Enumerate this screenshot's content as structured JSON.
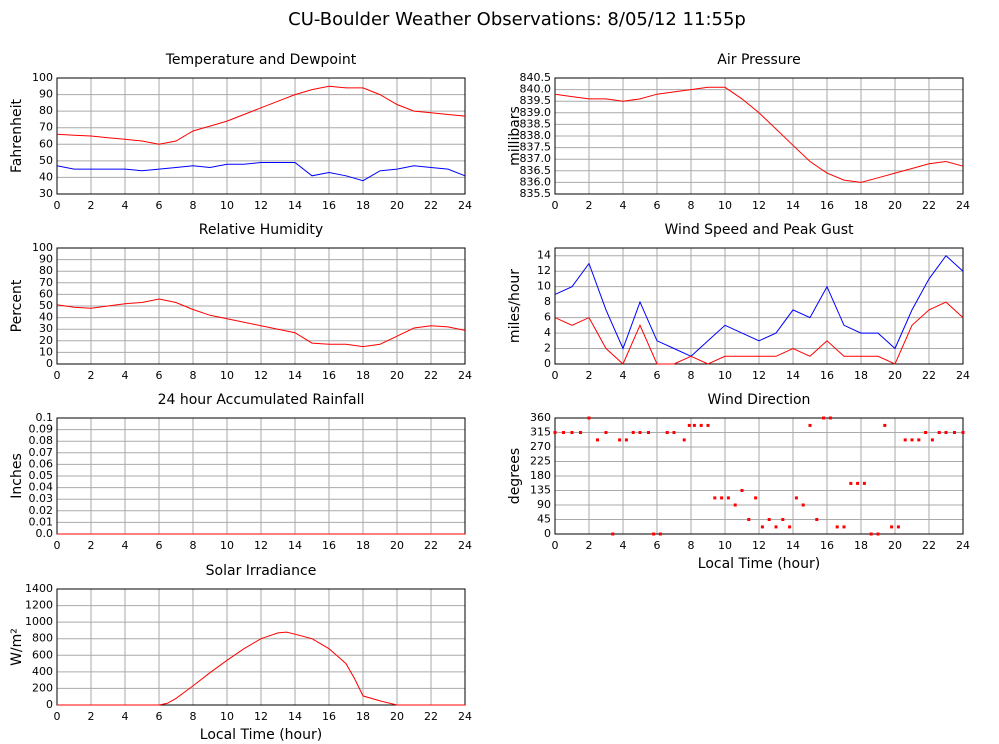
{
  "title": "CU-Boulder Weather Observations: 8/05/12 11:55p",
  "chart_data": [
    {
      "type": "line",
      "title": "Temperature and Dewpoint",
      "y_label": "Fahrenheit",
      "x": [
        0,
        1,
        2,
        3,
        4,
        5,
        6,
        7,
        8,
        9,
        10,
        11,
        12,
        13,
        14,
        15,
        16,
        17,
        18,
        19,
        20,
        21,
        22,
        23,
        24
      ],
      "series": [
        {
          "color": "#ff0000",
          "values": [
            66,
            65.5,
            65,
            64,
            63,
            62,
            60,
            62,
            68,
            71,
            74,
            78,
            82,
            86,
            90,
            93,
            95,
            94,
            94,
            90,
            84,
            80,
            79,
            78,
            77
          ]
        },
        {
          "color": "#0000ff",
          "values": [
            47,
            45,
            45,
            45,
            45,
            44,
            45,
            46,
            47,
            46,
            48,
            48,
            49,
            49,
            49,
            41,
            43,
            41,
            38,
            44,
            45,
            47,
            46,
            45,
            41
          ]
        }
      ],
      "xlim": [
        0,
        24
      ],
      "xticks": [
        0,
        2,
        4,
        6,
        8,
        10,
        12,
        14,
        16,
        18,
        20,
        22,
        24
      ],
      "ylim": [
        30,
        100
      ],
      "yticks": [
        30,
        40,
        50,
        60,
        70,
        80,
        90,
        100
      ],
      "grid": true
    },
    {
      "type": "line",
      "title": "Air Pressure",
      "y_label": "millibars",
      "x": [
        0,
        1,
        2,
        3,
        4,
        5,
        6,
        7,
        8,
        9,
        10,
        11,
        12,
        13,
        14,
        15,
        16,
        17,
        18,
        19,
        20,
        21,
        22,
        23,
        24
      ],
      "series": [
        {
          "color": "#ff0000",
          "values": [
            839.8,
            839.7,
            839.6,
            839.6,
            839.5,
            839.6,
            839.8,
            839.9,
            840.0,
            840.1,
            840.1,
            839.6,
            839.0,
            838.3,
            837.6,
            836.9,
            836.4,
            836.1,
            836.0,
            836.2,
            836.4,
            836.6,
            836.8,
            836.9,
            836.7
          ]
        }
      ],
      "xlim": [
        0,
        24
      ],
      "xticks": [
        0,
        2,
        4,
        6,
        8,
        10,
        12,
        14,
        16,
        18,
        20,
        22,
        24
      ],
      "ylim": [
        835.5,
        840.5
      ],
      "yticks": [
        835.5,
        {
          "value": 836,
          "label": "836.0"
        },
        836.5,
        {
          "value": 837,
          "label": "837.0"
        },
        837.5,
        {
          "value": 838,
          "label": "838.0"
        },
        838.5,
        {
          "value": 839,
          "label": "839.0"
        },
        839.5,
        {
          "value": 840,
          "label": "840.0"
        },
        840.5
      ],
      "grid": true
    },
    {
      "type": "line",
      "title": "Relative Humidity",
      "y_label": "Percent",
      "x": [
        0,
        1,
        2,
        3,
        4,
        5,
        6,
        7,
        8,
        9,
        10,
        11,
        12,
        13,
        14,
        15,
        16,
        17,
        18,
        19,
        20,
        21,
        22,
        23,
        24
      ],
      "series": [
        {
          "color": "#ff0000",
          "values": [
            51,
            49,
            48,
            50,
            52,
            53,
            56,
            53,
            47,
            42,
            39,
            36,
            33,
            30,
            27,
            18,
            17,
            17,
            15,
            17,
            24,
            31,
            33,
            32,
            29
          ]
        }
      ],
      "xlim": [
        0,
        24
      ],
      "xticks": [
        0,
        2,
        4,
        6,
        8,
        10,
        12,
        14,
        16,
        18,
        20,
        22,
        24
      ],
      "ylim": [
        0,
        100
      ],
      "yticks": [
        0,
        10,
        20,
        30,
        40,
        50,
        60,
        70,
        80,
        90,
        100
      ],
      "grid": true
    },
    {
      "type": "line",
      "title": "Wind Speed and Peak Gust",
      "y_label": "miles/hour",
      "x": [
        0,
        1,
        2,
        3,
        4,
        5,
        6,
        7,
        8,
        9,
        10,
        11,
        12,
        13,
        14,
        15,
        16,
        17,
        18,
        19,
        20,
        21,
        22,
        23,
        24
      ],
      "series": [
        {
          "color": "#0000ff",
          "values": [
            9,
            10,
            13,
            7,
            2,
            8,
            3,
            2,
            1,
            3,
            5,
            4,
            3,
            4,
            7,
            6,
            10,
            5,
            4,
            4,
            2,
            7,
            11,
            14,
            12
          ]
        },
        {
          "color": "#ff0000",
          "values": [
            6,
            5,
            6,
            2,
            0,
            5,
            0,
            0,
            1,
            0,
            1,
            1,
            1,
            1,
            2,
            1,
            3,
            1,
            1,
            1,
            0,
            5,
            7,
            8,
            6
          ]
        }
      ],
      "xlim": [
        0,
        24
      ],
      "xticks": [
        0,
        2,
        4,
        6,
        8,
        10,
        12,
        14,
        16,
        18,
        20,
        22,
        24
      ],
      "ylim": [
        0,
        15
      ],
      "yticks": [
        0,
        2,
        4,
        6,
        8,
        10,
        12,
        14
      ],
      "grid": true
    },
    {
      "type": "line",
      "title": "24 hour Accumulated Rainfall",
      "y_label": "Inches",
      "x": [
        0,
        24
      ],
      "series": [
        {
          "color": "#ff0000",
          "values": [
            0,
            0
          ]
        }
      ],
      "xlim": [
        0,
        24
      ],
      "xticks": [
        0,
        2,
        4,
        6,
        8,
        10,
        12,
        14,
        16,
        18,
        20,
        22,
        24
      ],
      "ylim": [
        0,
        0.1
      ],
      "yticks": [
        {
          "value": 0,
          "label": "0.0"
        },
        0.01,
        0.02,
        0.03,
        0.04,
        0.05,
        0.06,
        0.07,
        0.08,
        0.09,
        0.1
      ],
      "grid": true
    },
    {
      "type": "scatter",
      "title": "Wind Direction",
      "y_label": "degrees",
      "x_label": "Local Time (hour)",
      "x": [
        0,
        0.5,
        1,
        1.5,
        2,
        2.5,
        3,
        3.4,
        3.8,
        4.2,
        4.6,
        5,
        5.5,
        5.8,
        6.2,
        6.6,
        7,
        7.6,
        7.9,
        8.2,
        8.6,
        9,
        9.4,
        9.8,
        10.2,
        10.6,
        11,
        11.4,
        11.8,
        12.2,
        12.6,
        13,
        13.4,
        13.8,
        14.2,
        14.6,
        15,
        15.4,
        15.8,
        16.2,
        16.6,
        17,
        17.4,
        17.8,
        18.2,
        18.6,
        19,
        19.4,
        19.8,
        20.2,
        20.6,
        21,
        21.4,
        21.8,
        22.2,
        22.6,
        23,
        23.5,
        24
      ],
      "series": [
        {
          "color": "#ff0000",
          "values": [
            315,
            315,
            315,
            315,
            360,
            292,
            315,
            0,
            292,
            292,
            315,
            315,
            315,
            0,
            0,
            315,
            315,
            292,
            337,
            337,
            337,
            337,
            112,
            112,
            112,
            90,
            135,
            45,
            112,
            22,
            45,
            22,
            45,
            22,
            112,
            90,
            337,
            45,
            360,
            360,
            22,
            22,
            157,
            157,
            157,
            0,
            0,
            337,
            22,
            22,
            292,
            292,
            292,
            315,
            292,
            315,
            315,
            315,
            315
          ]
        }
      ],
      "xlim": [
        0,
        24
      ],
      "xticks": [
        0,
        2,
        4,
        6,
        8,
        10,
        12,
        14,
        16,
        18,
        20,
        22,
        24
      ],
      "ylim": [
        0,
        360
      ],
      "yticks": [
        0,
        45,
        90,
        135,
        180,
        225,
        270,
        315,
        360
      ],
      "grid": true
    },
    {
      "type": "line",
      "title": "Solar Irradiance",
      "y_label": "W/m²",
      "x_label": "Local Time (hour)",
      "x": [
        0,
        1,
        2,
        3,
        4,
        5,
        6,
        6.5,
        7,
        8,
        9,
        10,
        11,
        12,
        13,
        13.5,
        14,
        15,
        16,
        16.5,
        17,
        17.5,
        18,
        19,
        20,
        21,
        22,
        23,
        24
      ],
      "series": [
        {
          "color": "#ff0000",
          "values": [
            0,
            0,
            0,
            0,
            0,
            0,
            0,
            20,
            80,
            230,
            390,
            540,
            680,
            800,
            870,
            880,
            855,
            800,
            680,
            590,
            500,
            320,
            110,
            50,
            0,
            0,
            0,
            0,
            0
          ]
        }
      ],
      "xlim": [
        0,
        24
      ],
      "xticks": [
        0,
        2,
        4,
        6,
        8,
        10,
        12,
        14,
        16,
        18,
        20,
        22,
        24
      ],
      "ylim": [
        0,
        1400
      ],
      "yticks": [
        0,
        200,
        400,
        600,
        800,
        1000,
        1200,
        1400
      ],
      "grid": true
    }
  ]
}
